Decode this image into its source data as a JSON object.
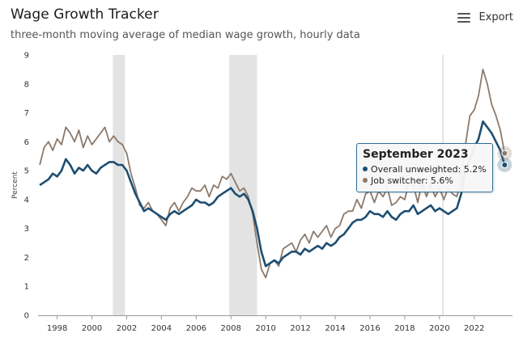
{
  "header": {
    "title": "Wage Growth Tracker",
    "subtitle": "three-month moving average of median wage growth, hourly data",
    "export_label": "Export",
    "export_icon": "menu-icon"
  },
  "tooltip": {
    "title": "September 2023",
    "rows": [
      {
        "label": "Overall unweighted: 5.2%",
        "color": "#1d4e72"
      },
      {
        "label": "Job switcher: 5.6%",
        "color": "#8c7a6b"
      }
    ]
  },
  "chart_data": {
    "type": "line",
    "title": "Wage Growth Tracker",
    "subtitle": "three-month moving average of median wage growth, hourly data",
    "xlabel": "",
    "ylabel": "Percent",
    "xlim": [
      1996.9,
      2024.2
    ],
    "ylim": [
      0,
      9
    ],
    "yticks": [
      0,
      1,
      2,
      3,
      4,
      5,
      6,
      7,
      8,
      9
    ],
    "xticks": [
      1998,
      2000,
      2002,
      2004,
      2006,
      2008,
      2010,
      2012,
      2014,
      2016,
      2018,
      2020,
      2022
    ],
    "xtick_labels": [
      "1998",
      "2000",
      "2002",
      "2004",
      "2006",
      "2008",
      "2010",
      "2012",
      "2014",
      "2016",
      "2018",
      "2020",
      "2022"
    ],
    "grid": false,
    "recessions": [
      [
        2001.2,
        2001.9
      ],
      [
        2007.9,
        2009.5
      ]
    ],
    "highlight_x": 2020.2,
    "series": [
      {
        "name": "Overall unweighted",
        "color": "#1d4e72",
        "x": [
          1997.0,
          1997.25,
          1997.5,
          1997.75,
          1998.0,
          1998.25,
          1998.5,
          1998.75,
          1999.0,
          1999.25,
          1999.5,
          1999.75,
          2000.0,
          2000.25,
          2000.5,
          2000.75,
          2001.0,
          2001.25,
          2001.5,
          2001.75,
          2002.0,
          2002.25,
          2002.5,
          2002.75,
          2003.0,
          2003.25,
          2003.5,
          2003.75,
          2004.0,
          2004.25,
          2004.5,
          2004.75,
          2005.0,
          2005.25,
          2005.5,
          2005.75,
          2006.0,
          2006.25,
          2006.5,
          2006.75,
          2007.0,
          2007.25,
          2007.5,
          2007.75,
          2008.0,
          2008.25,
          2008.5,
          2008.75,
          2009.0,
          2009.25,
          2009.5,
          2009.75,
          2010.0,
          2010.25,
          2010.5,
          2010.75,
          2011.0,
          2011.25,
          2011.5,
          2011.75,
          2012.0,
          2012.25,
          2012.5,
          2012.75,
          2013.0,
          2013.25,
          2013.5,
          2013.75,
          2014.0,
          2014.25,
          2014.5,
          2014.75,
          2015.0,
          2015.25,
          2015.5,
          2015.75,
          2016.0,
          2016.25,
          2016.5,
          2016.75,
          2017.0,
          2017.25,
          2017.5,
          2017.75,
          2018.0,
          2018.25,
          2018.5,
          2018.75,
          2019.0,
          2019.25,
          2019.5,
          2019.75,
          2020.0,
          2020.25,
          2020.5,
          2020.75,
          2021.0,
          2021.25,
          2021.5,
          2021.75,
          2022.0,
          2022.25,
          2022.5,
          2022.75,
          2023.0,
          2023.25,
          2023.5,
          2023.75
        ],
        "values": [
          4.5,
          4.6,
          4.7,
          4.9,
          4.8,
          5.0,
          5.4,
          5.2,
          4.9,
          5.1,
          5.0,
          5.2,
          5.0,
          4.9,
          5.1,
          5.2,
          5.3,
          5.3,
          5.2,
          5.2,
          5.0,
          4.6,
          4.2,
          3.9,
          3.6,
          3.7,
          3.6,
          3.5,
          3.4,
          3.3,
          3.5,
          3.6,
          3.5,
          3.6,
          3.7,
          3.8,
          4.0,
          3.9,
          3.9,
          3.8,
          3.9,
          4.1,
          4.2,
          4.3,
          4.4,
          4.2,
          4.1,
          4.2,
          4.0,
          3.6,
          3.0,
          2.2,
          1.7,
          1.8,
          1.9,
          1.8,
          2.0,
          2.1,
          2.2,
          2.2,
          2.1,
          2.3,
          2.2,
          2.3,
          2.4,
          2.3,
          2.5,
          2.4,
          2.5,
          2.7,
          2.8,
          3.0,
          3.2,
          3.3,
          3.3,
          3.4,
          3.6,
          3.5,
          3.5,
          3.4,
          3.6,
          3.4,
          3.3,
          3.5,
          3.6,
          3.6,
          3.8,
          3.5,
          3.6,
          3.7,
          3.8,
          3.6,
          3.7,
          3.6,
          3.5,
          3.6,
          3.7,
          4.2,
          5.0,
          5.4,
          5.8,
          6.1,
          6.7,
          6.5,
          6.3,
          6.0,
          5.7,
          5.2
        ]
      },
      {
        "name": "Job switcher",
        "color": "#8c7a6b",
        "x": [
          1997.0,
          1997.25,
          1997.5,
          1997.75,
          1998.0,
          1998.25,
          1998.5,
          1998.75,
          1999.0,
          1999.25,
          1999.5,
          1999.75,
          2000.0,
          2000.25,
          2000.5,
          2000.75,
          2001.0,
          2001.25,
          2001.5,
          2001.75,
          2002.0,
          2002.25,
          2002.5,
          2002.75,
          2003.0,
          2003.25,
          2003.5,
          2003.75,
          2004.0,
          2004.25,
          2004.5,
          2004.75,
          2005.0,
          2005.25,
          2005.5,
          2005.75,
          2006.0,
          2006.25,
          2006.5,
          2006.75,
          2007.0,
          2007.25,
          2007.5,
          2007.75,
          2008.0,
          2008.25,
          2008.5,
          2008.75,
          2009.0,
          2009.25,
          2009.5,
          2009.75,
          2010.0,
          2010.25,
          2010.5,
          2010.75,
          2011.0,
          2011.25,
          2011.5,
          2011.75,
          2012.0,
          2012.25,
          2012.5,
          2012.75,
          2013.0,
          2013.25,
          2013.5,
          2013.75,
          2014.0,
          2014.25,
          2014.5,
          2014.75,
          2015.0,
          2015.25,
          2015.5,
          2015.75,
          2016.0,
          2016.25,
          2016.5,
          2016.75,
          2017.0,
          2017.25,
          2017.5,
          2017.75,
          2018.0,
          2018.25,
          2018.5,
          2018.75,
          2019.0,
          2019.25,
          2019.5,
          2019.75,
          2020.0,
          2020.25,
          2020.5,
          2020.75,
          2021.0,
          2021.25,
          2021.5,
          2021.75,
          2022.0,
          2022.25,
          2022.5,
          2022.75,
          2023.0,
          2023.25,
          2023.5,
          2023.75
        ],
        "values": [
          5.2,
          5.8,
          6.0,
          5.7,
          6.1,
          5.9,
          6.5,
          6.3,
          6.0,
          6.4,
          5.8,
          6.2,
          5.9,
          6.1,
          6.3,
          6.5,
          6.0,
          6.2,
          6.0,
          5.9,
          5.6,
          4.9,
          4.4,
          3.8,
          3.7,
          3.9,
          3.6,
          3.5,
          3.3,
          3.1,
          3.7,
          3.9,
          3.6,
          3.9,
          4.1,
          4.4,
          4.3,
          4.3,
          4.5,
          4.1,
          4.5,
          4.4,
          4.8,
          4.7,
          4.9,
          4.6,
          4.3,
          4.4,
          4.1,
          3.5,
          2.5,
          1.6,
          1.3,
          1.8,
          1.9,
          1.7,
          2.3,
          2.4,
          2.5,
          2.2,
          2.6,
          2.8,
          2.5,
          2.9,
          2.7,
          2.9,
          3.1,
          2.7,
          3.0,
          3.1,
          3.5,
          3.6,
          3.6,
          4.0,
          3.7,
          4.2,
          4.3,
          3.9,
          4.3,
          4.1,
          4.4,
          3.8,
          3.9,
          4.1,
          4.0,
          4.6,
          4.5,
          3.9,
          4.6,
          4.1,
          4.5,
          4.1,
          4.4,
          4.0,
          4.4,
          4.2,
          4.1,
          4.7,
          5.9,
          6.9,
          7.1,
          7.6,
          8.5,
          8.0,
          7.3,
          6.9,
          6.4,
          5.6
        ]
      }
    ],
    "tooltip_x": 2023.75
  }
}
